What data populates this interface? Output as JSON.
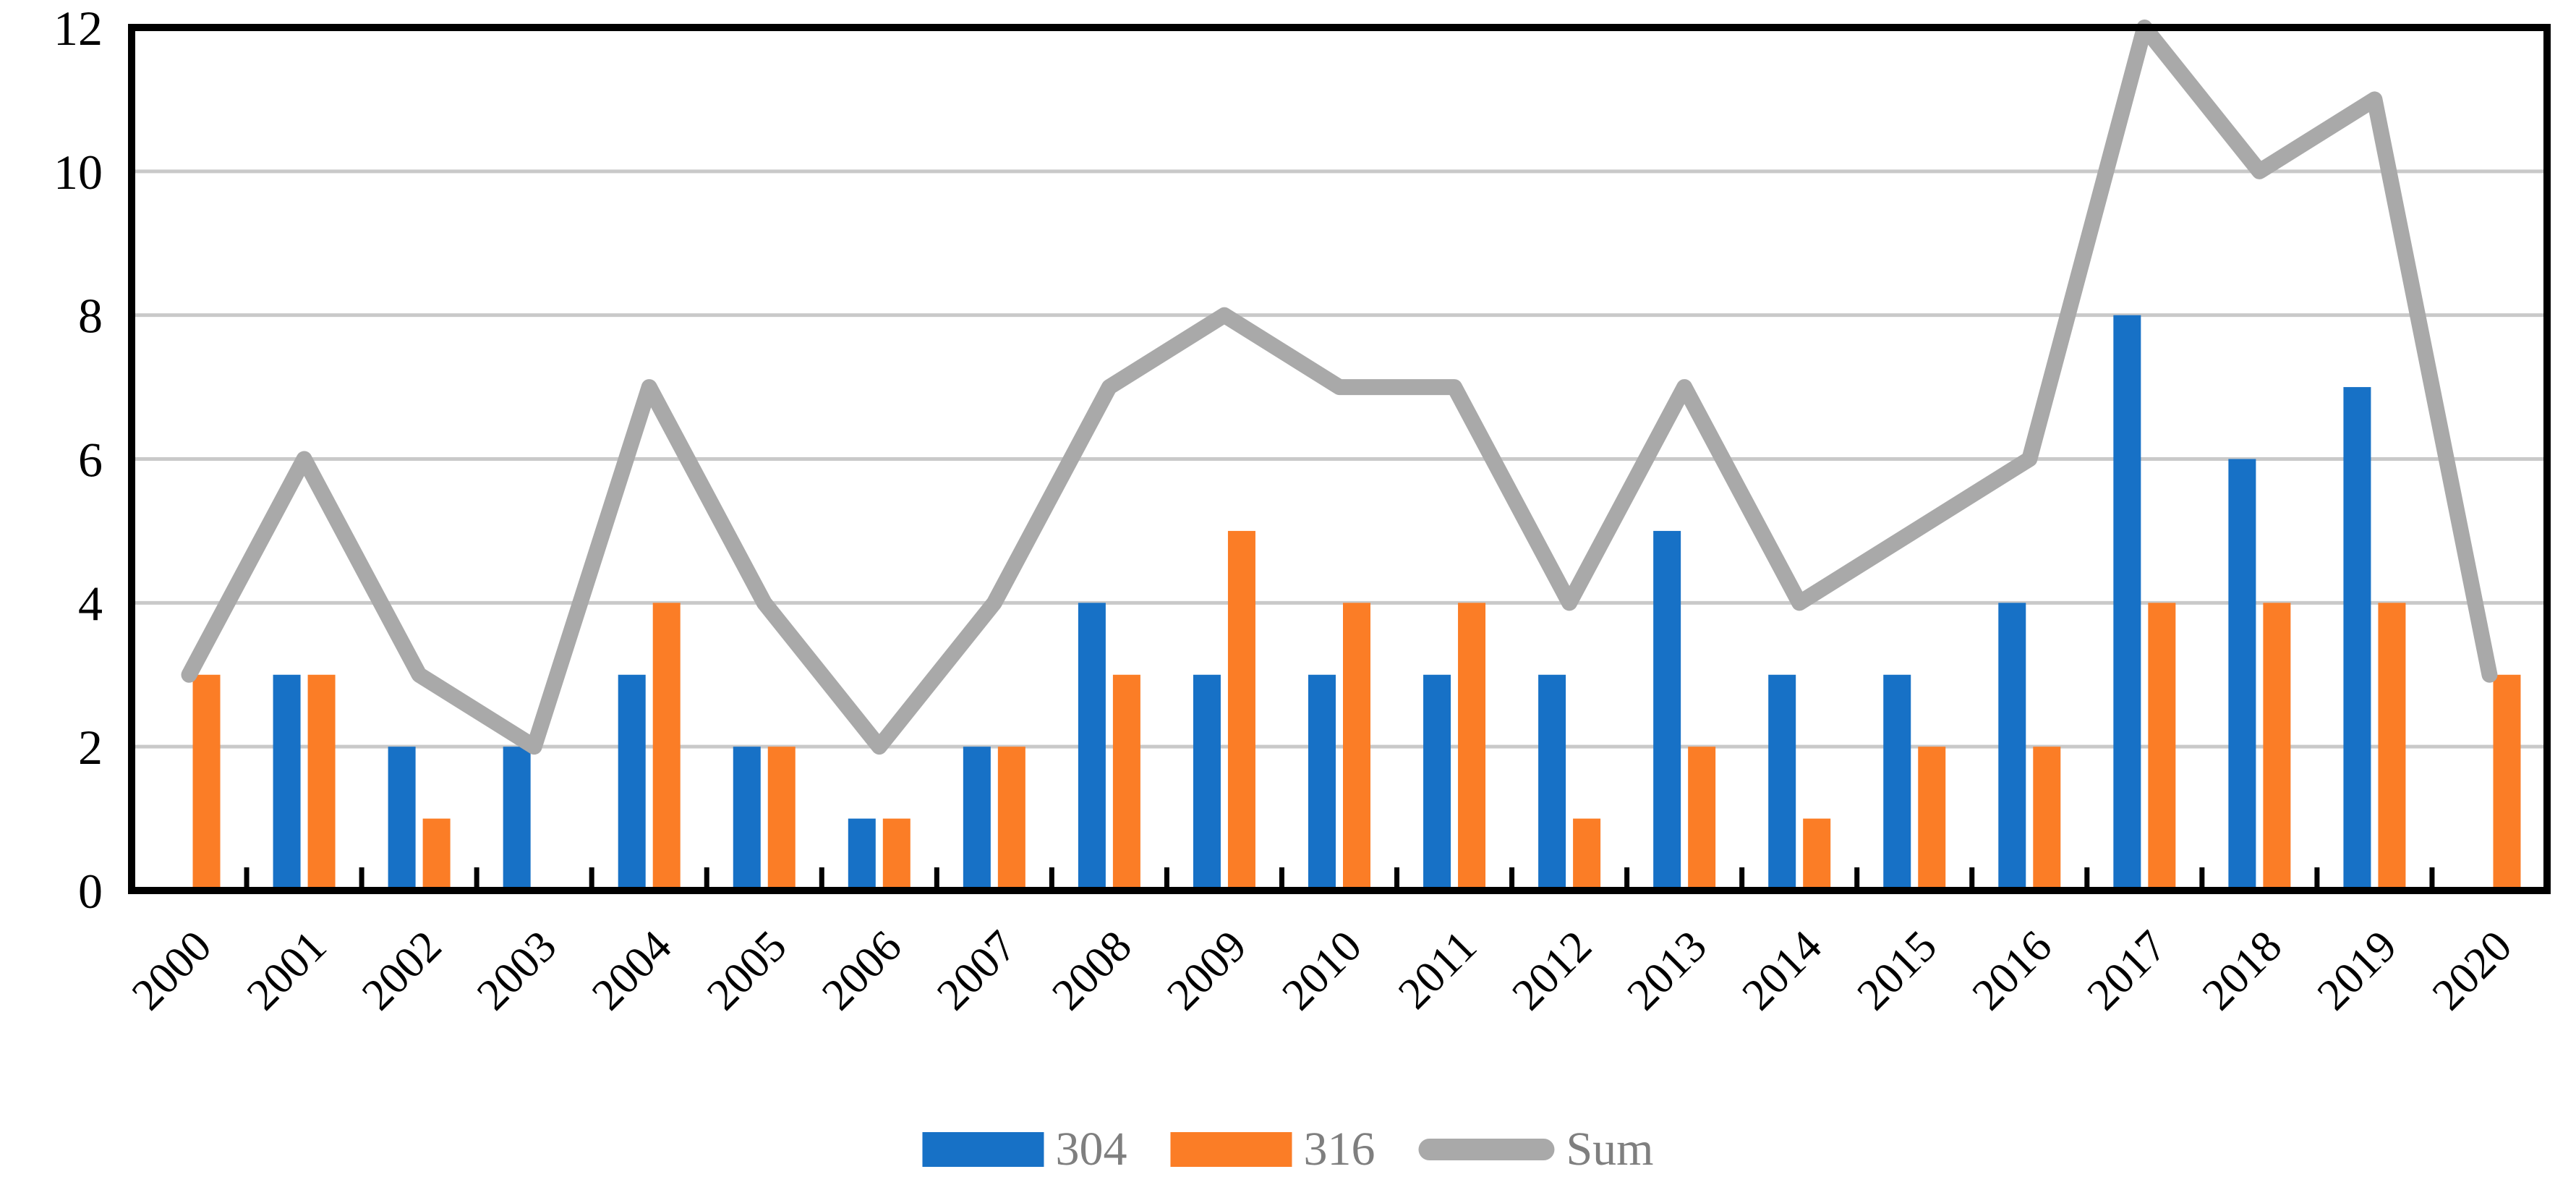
{
  "figure": {
    "background": "#ffffff",
    "axis_color": "#000000",
    "gridline_color": "#c9c9c9",
    "legend_text_color": "#7f7f7f"
  },
  "chart_data": {
    "type": "bar",
    "subtype": "grouped-bars-with-line-overlay",
    "categories": [
      "2000",
      "2001",
      "2002",
      "2003",
      "2004",
      "2005",
      "2006",
      "2007",
      "2008",
      "2009",
      "2010",
      "2011",
      "2012",
      "2013",
      "2014",
      "2015",
      "2016",
      "2017",
      "2018",
      "2019",
      "2020"
    ],
    "series": [
      {
        "name": "304",
        "type": "bar",
        "color": "#1771C6",
        "values": [
          0,
          3,
          2,
          2,
          3,
          2,
          1,
          2,
          4,
          3,
          3,
          3,
          3,
          5,
          3,
          3,
          4,
          8,
          6,
          7,
          0
        ]
      },
      {
        "name": "316",
        "type": "bar",
        "color": "#FB7D26",
        "values": [
          3,
          3,
          1,
          0,
          4,
          2,
          1,
          2,
          3,
          5,
          4,
          4,
          1,
          2,
          1,
          2,
          2,
          4,
          4,
          4,
          3
        ]
      },
      {
        "name": "Sum",
        "type": "line",
        "color": "#A9A9A9",
        "values": [
          3,
          6,
          3,
          2,
          7,
          4,
          2,
          4,
          7,
          8,
          7,
          7,
          4,
          7,
          4,
          5,
          6,
          12,
          10,
          11,
          3
        ]
      }
    ],
    "title": "",
    "xlabel": "",
    "ylabel": "",
    "ylim": [
      0,
      12
    ],
    "yticks": [
      0,
      2,
      4,
      6,
      8,
      10,
      12
    ],
    "grid": true,
    "legend_position": "bottom"
  }
}
